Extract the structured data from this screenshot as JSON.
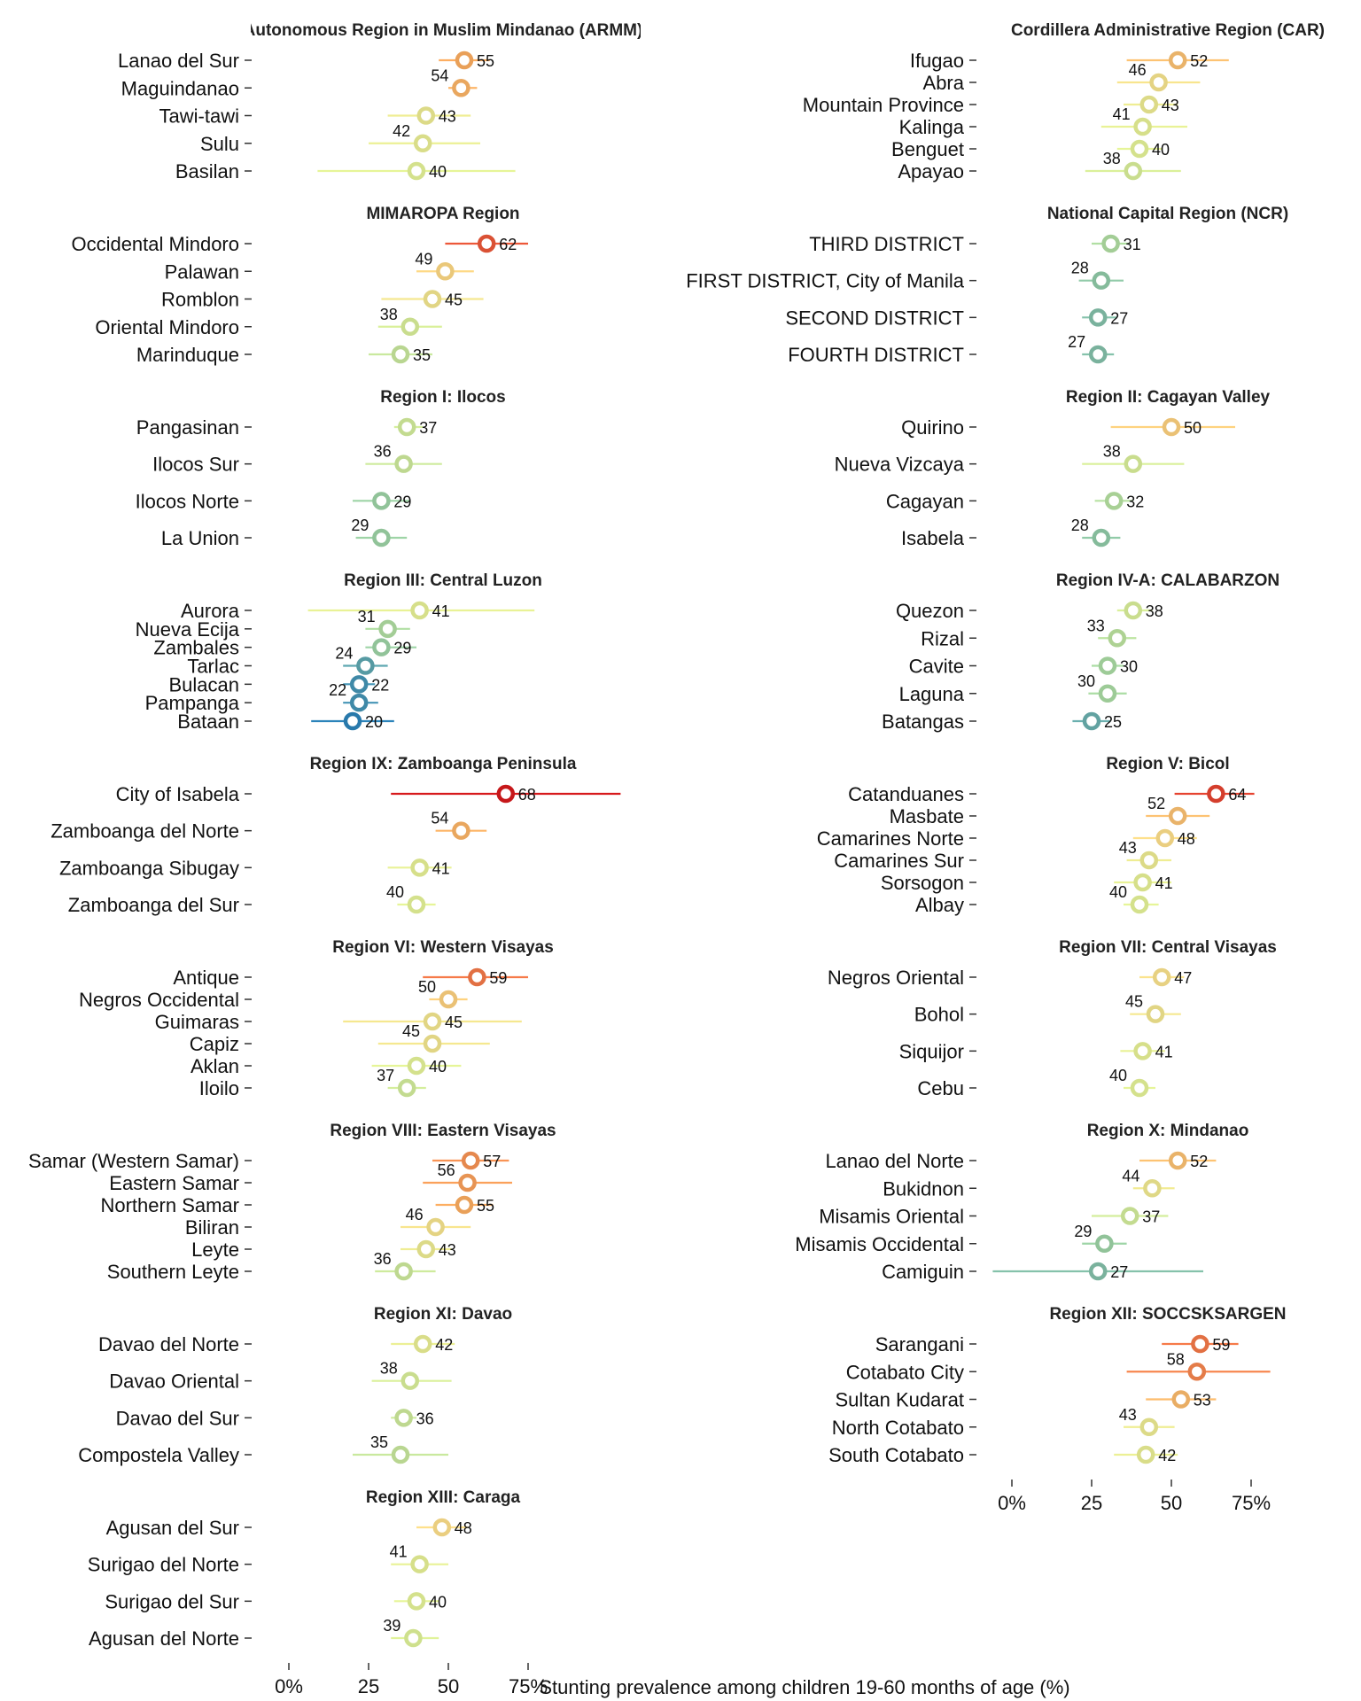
{
  "chart_data": {
    "type": "dot-interval",
    "xlabel": "Stunting prevalence among children 19-60 months of age (%)",
    "ylabel": "",
    "xlim": [
      0,
      80
    ],
    "xticks": [
      0,
      25,
      50,
      75
    ],
    "xtick_labels": [
      "0%",
      "25",
      "50",
      "75%"
    ],
    "colors": {
      "scale_low": "#2b83ba",
      "scale_mid_low": "#abdda4",
      "scale_mid": "#ffffbf",
      "scale_mid_high": "#fdae61",
      "scale_high": "#d7191c"
    },
    "panels": [
      {
        "title": "Autonomous Region in Muslim Mindanao (ARMM)",
        "column": 0,
        "row": 0,
        "categories": [
          "Lanao del Sur",
          "Maguindanao",
          "Tawi-tawi",
          "Sulu",
          "Basilan"
        ],
        "values": [
          55,
          54,
          43,
          42,
          40
        ],
        "ci": [
          [
            47,
            63
          ],
          [
            50,
            59
          ],
          [
            31,
            57
          ],
          [
            25,
            60
          ],
          [
            9,
            71
          ]
        ]
      },
      {
        "title": "Cordillera Administrative Region (CAR)",
        "column": 1,
        "row": 0,
        "categories": [
          "Ifugao",
          "Abra",
          "Mountain Province",
          "Kalinga",
          "Benguet",
          "Apayao"
        ],
        "values": [
          52,
          46,
          43,
          41,
          40,
          38
        ],
        "ci": [
          [
            36,
            68
          ],
          [
            33,
            59
          ],
          [
            35,
            52
          ],
          [
            28,
            55
          ],
          [
            33,
            47
          ],
          [
            23,
            53
          ]
        ]
      },
      {
        "title": "MIMAROPA Region",
        "column": 0,
        "row": 1,
        "categories": [
          "Occidental Mindoro",
          "Palawan",
          "Romblon",
          "Oriental Mindoro",
          "Marinduque"
        ],
        "values": [
          62,
          49,
          45,
          38,
          35
        ],
        "ci": [
          [
            49,
            75
          ],
          [
            40,
            58
          ],
          [
            29,
            61
          ],
          [
            28,
            48
          ],
          [
            25,
            45
          ]
        ]
      },
      {
        "title": "National Capital Region (NCR)",
        "column": 1,
        "row": 1,
        "categories": [
          "THIRD DISTRICT",
          "FIRST DISTRICT, City of Manila",
          "SECOND DISTRICT",
          "FOURTH DISTRICT"
        ],
        "values": [
          31,
          28,
          27,
          27
        ],
        "ci": [
          [
            25,
            37
          ],
          [
            21,
            35
          ],
          [
            22,
            33
          ],
          [
            22,
            32
          ]
        ]
      },
      {
        "title": "Region I: Ilocos",
        "column": 0,
        "row": 2,
        "categories": [
          "Pangasinan",
          "Ilocos Sur",
          "Ilocos Norte",
          "La Union"
        ],
        "values": [
          37,
          36,
          29,
          29
        ],
        "ci": [
          [
            33,
            42
          ],
          [
            24,
            48
          ],
          [
            20,
            38
          ],
          [
            21,
            37
          ]
        ]
      },
      {
        "title": "Region II: Cagayan Valley",
        "column": 1,
        "row": 2,
        "categories": [
          "Quirino",
          "Nueva Vizcaya",
          "Cagayan",
          "Isabela"
        ],
        "values": [
          50,
          38,
          32,
          28
        ],
        "ci": [
          [
            31,
            70
          ],
          [
            22,
            54
          ],
          [
            26,
            38
          ],
          [
            22,
            34
          ]
        ]
      },
      {
        "title": "Region III: Central Luzon",
        "column": 0,
        "row": 3,
        "categories": [
          "Aurora",
          "Nueva Ecija",
          "Zambales",
          "Tarlac",
          "Bulacan",
          "Pampanga",
          "Bataan"
        ],
        "values": [
          41,
          31,
          29,
          24,
          22,
          22,
          20
        ],
        "ci": [
          [
            6,
            77
          ],
          [
            24,
            38
          ],
          [
            24,
            40
          ],
          [
            17,
            31
          ],
          [
            17,
            27
          ],
          [
            17,
            28
          ],
          [
            7,
            33
          ]
        ]
      },
      {
        "title": "Region IV-A: CALABARZON",
        "column": 1,
        "row": 3,
        "categories": [
          "Quezon",
          "Rizal",
          "Cavite",
          "Laguna",
          "Batangas"
        ],
        "values": [
          38,
          33,
          30,
          30,
          25
        ],
        "ci": [
          [
            33,
            44
          ],
          [
            27,
            39
          ],
          [
            25,
            35
          ],
          [
            24,
            36
          ],
          [
            19,
            31
          ]
        ]
      },
      {
        "title": "Region IX: Zamboanga Peninsula",
        "column": 0,
        "row": 4,
        "categories": [
          "City of Isabela",
          "Zamboanga del Norte",
          "Zamboanga Sibugay",
          "Zamboanga del Sur"
        ],
        "values": [
          68,
          54,
          41,
          40
        ],
        "ci": [
          [
            32,
            104
          ],
          [
            46,
            62
          ],
          [
            31,
            51
          ],
          [
            34,
            46
          ]
        ]
      },
      {
        "title": "Region V: Bicol",
        "column": 1,
        "row": 4,
        "categories": [
          "Catanduanes",
          "Masbate",
          "Camarines Norte",
          "Camarines Sur",
          "Sorsogon",
          "Albay"
        ],
        "values": [
          64,
          52,
          48,
          43,
          41,
          40
        ],
        "ci": [
          [
            51,
            76
          ],
          [
            42,
            62
          ],
          [
            38,
            58
          ],
          [
            36,
            50
          ],
          [
            32,
            50
          ],
          [
            35,
            46
          ]
        ]
      },
      {
        "title": "Region VI: Western Visayas",
        "column": 0,
        "row": 5,
        "categories": [
          "Antique",
          "Negros Occidental",
          "Guimaras",
          "Capiz",
          "Aklan",
          "Iloilo"
        ],
        "values": [
          59,
          50,
          45,
          45,
          40,
          37
        ],
        "ci": [
          [
            42,
            75
          ],
          [
            44,
            56
          ],
          [
            17,
            73
          ],
          [
            28,
            63
          ],
          [
            26,
            54
          ],
          [
            31,
            43
          ]
        ]
      },
      {
        "title": "Region VII: Central Visayas",
        "column": 1,
        "row": 5,
        "categories": [
          "Negros Oriental",
          "Bohol",
          "Siquijor",
          "Cebu"
        ],
        "values": [
          47,
          45,
          41,
          40
        ],
        "ci": [
          [
            40,
            54
          ],
          [
            37,
            53
          ],
          [
            34,
            48
          ],
          [
            35,
            45
          ]
        ]
      },
      {
        "title": "Region VIII: Eastern Visayas",
        "column": 0,
        "row": 6,
        "categories": [
          "Samar (Western Samar)",
          "Eastern Samar",
          "Northern Samar",
          "Biliran",
          "Leyte",
          "Southern Leyte"
        ],
        "values": [
          57,
          56,
          55,
          46,
          43,
          36
        ],
        "ci": [
          [
            45,
            69
          ],
          [
            42,
            70
          ],
          [
            46,
            64
          ],
          [
            35,
            57
          ],
          [
            35,
            51
          ],
          [
            27,
            46
          ]
        ]
      },
      {
        "title": "Region X: Mindanao",
        "column": 1,
        "row": 6,
        "categories": [
          "Lanao del Norte",
          "Bukidnon",
          "Misamis Oriental",
          "Misamis Occidental",
          "Camiguin"
        ],
        "values": [
          52,
          44,
          37,
          29,
          27
        ],
        "ci": [
          [
            40,
            64
          ],
          [
            38,
            51
          ],
          [
            25,
            49
          ],
          [
            22,
            36
          ],
          [
            -6,
            60
          ]
        ]
      },
      {
        "title": "Region XI: Davao",
        "column": 0,
        "row": 7,
        "categories": [
          "Davao del Norte",
          "Davao Oriental",
          "Davao del Sur",
          "Compostela Valley"
        ],
        "values": [
          42,
          38,
          36,
          35
        ],
        "ci": [
          [
            32,
            52
          ],
          [
            26,
            51
          ],
          [
            32,
            40
          ],
          [
            20,
            50
          ]
        ]
      },
      {
        "title": "Region XII: SOCCSKSARGEN",
        "column": 1,
        "row": 7,
        "categories": [
          "Sarangani",
          "Cotabato City",
          "Sultan Kudarat",
          "North Cotabato",
          "South Cotabato"
        ],
        "values": [
          59,
          58,
          53,
          43,
          42
        ],
        "ci": [
          [
            47,
            71
          ],
          [
            36,
            81
          ],
          [
            42,
            64
          ],
          [
            35,
            51
          ],
          [
            32,
            52
          ]
        ]
      },
      {
        "title": "Region XIII: Caraga",
        "column": 0,
        "row": 8,
        "categories": [
          "Agusan del Sur",
          "Surigao del Norte",
          "Surigao del Sur",
          "Agusan del Norte"
        ],
        "values": [
          48,
          41,
          40,
          39
        ],
        "ci": [
          [
            40,
            56
          ],
          [
            32,
            50
          ],
          [
            33,
            47
          ],
          [
            32,
            47
          ]
        ]
      }
    ]
  }
}
